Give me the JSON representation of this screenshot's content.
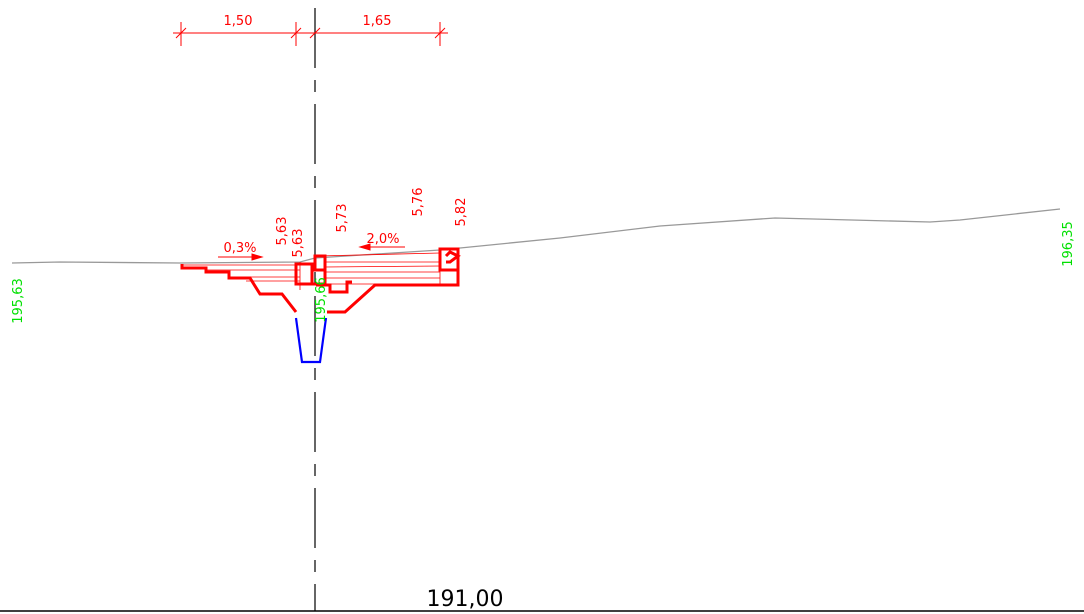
{
  "dimensions": {
    "left_offset": "1,50",
    "right_offset": "1,65"
  },
  "elevations": {
    "left_edge": "195,63",
    "right_edge": "196,35",
    "center_bottom": "195,66"
  },
  "heights": {
    "h1": "5,63",
    "h2": "5,63",
    "h3": "5,73",
    "h4": "5,76",
    "h5": "5,82"
  },
  "slopes": {
    "left": "0,3%",
    "right": "2,0%"
  },
  "datum": {
    "value": "191,00"
  },
  "colors": {
    "structure": "#ff0000",
    "elevation_text": "#00e000",
    "ditch": "#0000ff",
    "terrain": "#999999",
    "axis": "#000000"
  }
}
